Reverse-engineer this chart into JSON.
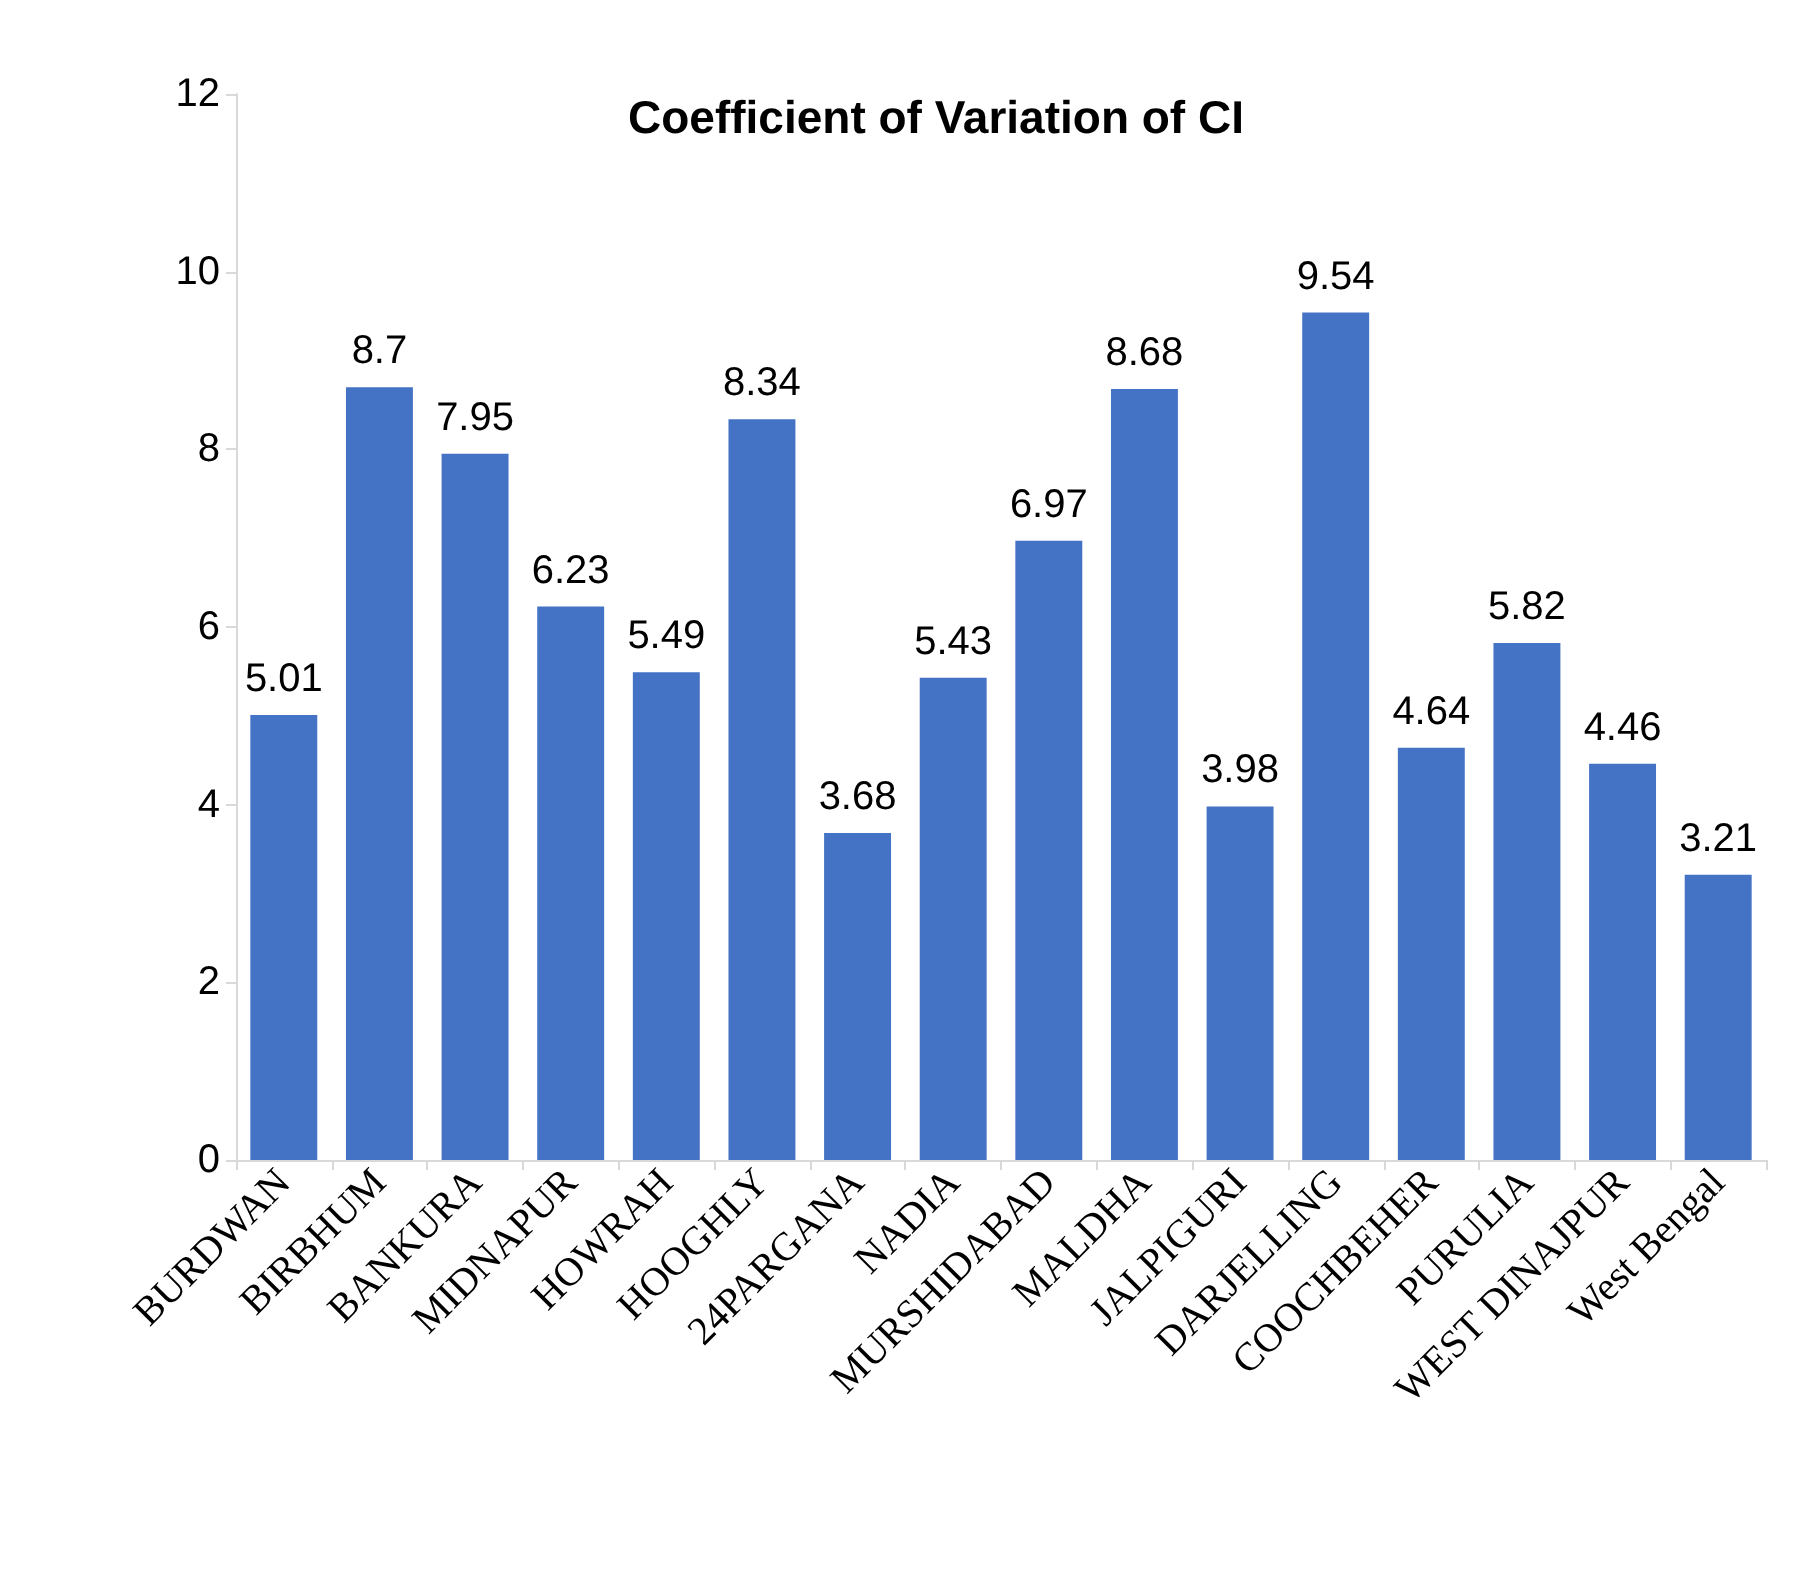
{
  "chart_data": {
    "type": "bar",
    "title": "Coefficient of Variation of CI",
    "categories": [
      "BURDWAN",
      "BIRBHUM",
      "BANKURA",
      "MIDNAPUR",
      "HOWRAH",
      "HOOGHLY",
      "24PARGANA",
      "NADIA",
      "MURSHIDABAD",
      "MALDHA",
      "JALPIGURI",
      "DARJELLING",
      "COOCHBEHER",
      "PURULIA",
      "WEST DINAJPUR",
      "West Bengal"
    ],
    "values": [
      5.01,
      8.7,
      7.95,
      6.23,
      5.49,
      8.34,
      3.68,
      5.43,
      6.97,
      8.68,
      3.98,
      9.54,
      4.64,
      5.82,
      4.46,
      3.21
    ],
    "color": "#4472c4",
    "ylim": [
      0,
      12
    ],
    "yticks": [
      0,
      2,
      4,
      6,
      8,
      10,
      12
    ],
    "data_labels": true
  }
}
